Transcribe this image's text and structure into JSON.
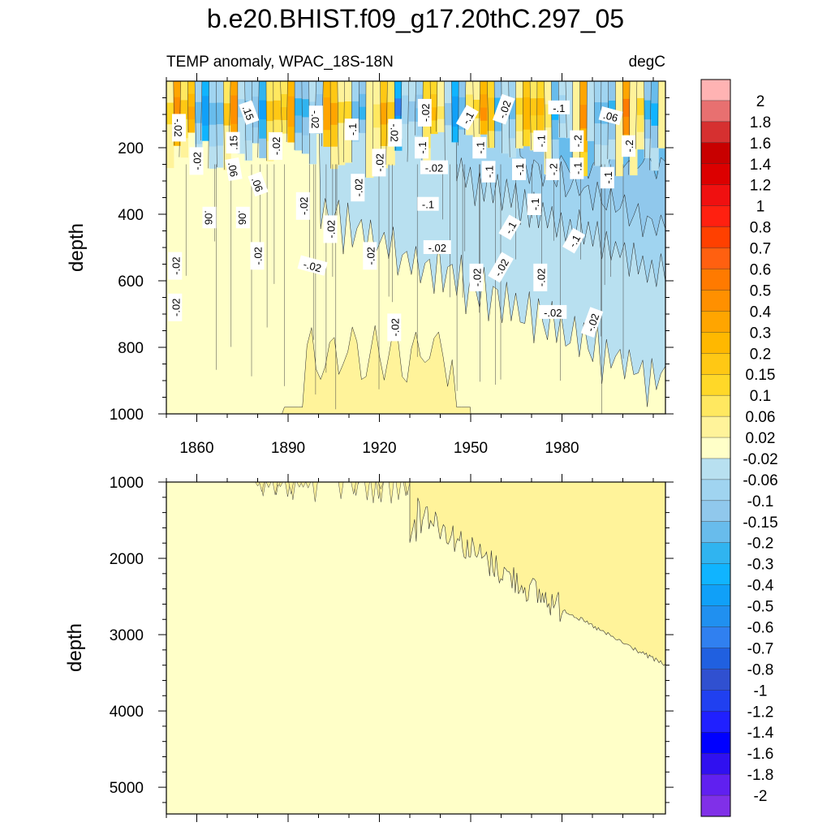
{
  "figure": {
    "title": "b.e20.BHIST.f09_g17.20thC.297_05"
  },
  "chart_data": [
    {
      "type": "heatmap",
      "panel": "upper",
      "left_subtitle": "TEMP anomaly, WPAC_18S-18N",
      "right_subtitle": "degC",
      "xlabel": "",
      "ylabel": "depth",
      "xlim": [
        1850,
        2014
      ],
      "ylim": [
        1000,
        0
      ],
      "x_ticks": [
        1860,
        1890,
        1920,
        1950,
        1980
      ],
      "x_tick_labels": [
        "1860",
        "1890",
        "1920",
        "1950",
        "1980"
      ],
      "y_ticks": [
        200,
        400,
        600,
        800,
        1000
      ],
      "y_tick_labels": [
        "200",
        "400",
        "600",
        "800",
        "1000"
      ],
      "description_regions": [
        {
          "depth": [
            0,
            260
          ],
          "x": [
            1850,
            2014
          ],
          "value_range": [
            -0.6,
            0.6
          ],
          "note": "high-frequency warm/cool alternation near surface"
        },
        {
          "depth": [
            260,
            700
          ],
          "x": [
            1940,
            2014
          ],
          "value_range": [
            -0.2,
            -0.02
          ]
        },
        {
          "depth": [
            400,
            1000
          ],
          "x": [
            1850,
            1940
          ],
          "value_range": [
            -0.02,
            0.06
          ]
        },
        {
          "depth": [
            700,
            1000
          ],
          "x": [
            1990,
            2014
          ],
          "value_range": [
            -0.06,
            -0.02
          ]
        }
      ],
      "contour_labels": [
        {
          "text": "-.02",
          "x": 1854,
          "y": 140,
          "rot": 90
        },
        {
          "text": ".15",
          "x": 1877,
          "y": 95,
          "rot": 70
        },
        {
          "text": "-.02",
          "x": 1899,
          "y": 115,
          "rot": 90
        },
        {
          "text": ".15",
          "x": 1872,
          "y": 185,
          "rot": -90
        },
        {
          "text": "-.02",
          "x": 1886,
          "y": 195,
          "rot": -90
        },
        {
          "text": "-.1",
          "x": 1911,
          "y": 145,
          "rot": -90
        },
        {
          "text": "-.02",
          "x": 1925,
          "y": 155,
          "rot": 90
        },
        {
          "text": "-.02",
          "x": 1935,
          "y": 95,
          "rot": -90
        },
        {
          "text": "-.1",
          "x": 1949,
          "y": 110,
          "rot": -60
        },
        {
          "text": "-.02",
          "x": 1961,
          "y": 85,
          "rot": -70
        },
        {
          "text": "-.1",
          "x": 1979,
          "y": 80,
          "rot": 0
        },
        {
          "text": ".06",
          "x": 1996,
          "y": 105,
          "rot": 15
        },
        {
          "text": "-.02",
          "x": 1860,
          "y": 240,
          "rot": -90
        },
        {
          "text": ".06",
          "x": 1872,
          "y": 265,
          "rot": 80
        },
        {
          "text": "-.02",
          "x": 1920,
          "y": 245,
          "rot": -90
        },
        {
          "text": "-.1",
          "x": 1934,
          "y": 200,
          "rot": -90
        },
        {
          "text": "-.02",
          "x": 1938,
          "y": 260,
          "rot": 0
        },
        {
          "text": "-.1",
          "x": 1953,
          "y": 200,
          "rot": -90
        },
        {
          "text": "-.1",
          "x": 1956,
          "y": 272,
          "rot": -90
        },
        {
          "text": "-.1",
          "x": 1966,
          "y": 265,
          "rot": -90
        },
        {
          "text": "-.1",
          "x": 1973,
          "y": 180,
          "rot": -90
        },
        {
          "text": "-.2",
          "x": 1977,
          "y": 265,
          "rot": -90
        },
        {
          "text": "-.1",
          "x": 1985,
          "y": 262,
          "rot": -90
        },
        {
          "text": "-.2",
          "x": 1985,
          "y": 180,
          "rot": -90
        },
        {
          "text": "-.2",
          "x": 2002,
          "y": 195,
          "rot": -90
        },
        {
          "text": "-.1",
          "x": 1995,
          "y": 290,
          "rot": -90
        },
        {
          "text": ".06",
          "x": 1880,
          "y": 310,
          "rot": 70
        },
        {
          "text": "-.02",
          "x": 1913,
          "y": 320,
          "rot": -90
        },
        {
          "text": ".06",
          "x": 1864,
          "y": 410,
          "rot": 90
        },
        {
          "text": ".06",
          "x": 1875,
          "y": 410,
          "rot": 90
        },
        {
          "text": "-.02",
          "x": 1895,
          "y": 375,
          "rot": -90
        },
        {
          "text": "-.02",
          "x": 1904,
          "y": 445,
          "rot": -90
        },
        {
          "text": "-.1",
          "x": 1936,
          "y": 370,
          "rot": 0
        },
        {
          "text": "-.1",
          "x": 1971,
          "y": 370,
          "rot": -90
        },
        {
          "text": "-.1",
          "x": 1963,
          "y": 440,
          "rot": -60
        },
        {
          "text": "-.02",
          "x": 1880,
          "y": 525,
          "rot": -90
        },
        {
          "text": "-.02",
          "x": 1917,
          "y": 525,
          "rot": -90
        },
        {
          "text": "-.02",
          "x": 1939,
          "y": 500,
          "rot": 0
        },
        {
          "text": "-.1",
          "x": 1984,
          "y": 480,
          "rot": -60
        },
        {
          "text": "-.02",
          "x": 1853,
          "y": 555,
          "rot": -90
        },
        {
          "text": "-.02",
          "x": 1898,
          "y": 555,
          "rot": 15
        },
        {
          "text": "-.02",
          "x": 1952,
          "y": 590,
          "rot": -90
        },
        {
          "text": "-.02",
          "x": 1960,
          "y": 560,
          "rot": -60
        },
        {
          "text": "-.02",
          "x": 1973,
          "y": 590,
          "rot": -90
        },
        {
          "text": "-.02",
          "x": 1853,
          "y": 680,
          "rot": -90
        },
        {
          "text": "-.02",
          "x": 1977,
          "y": 695,
          "rot": 0
        },
        {
          "text": "-.02",
          "x": 1990,
          "y": 725,
          "rot": -70
        },
        {
          "text": "-.02",
          "x": 1925,
          "y": 740,
          "rot": -90
        }
      ]
    },
    {
      "type": "heatmap",
      "panel": "lower",
      "xlabel": "",
      "ylabel": "depth",
      "xlim": [
        1850,
        2014
      ],
      "ylim": [
        5350,
        1000
      ],
      "x_ticks": [
        1860,
        1890,
        1920,
        1950,
        1980
      ],
      "y_ticks": [
        1000,
        2000,
        3000,
        4000,
        5000
      ],
      "y_tick_labels": [
        "1000",
        "2000",
        "3000",
        "4000",
        "5000"
      ],
      "description_regions": [
        {
          "depth": [
            1000,
            5350
          ],
          "x": [
            1850,
            2014
          ],
          "value_range": [
            -0.02,
            0.02
          ]
        },
        {
          "depth": [
            1000,
            3400
          ],
          "x": [
            1935,
            2014
          ],
          "value_range": [
            0.02,
            0.06
          ],
          "note": "warming penetrating deeper over time"
        }
      ]
    }
  ],
  "colorbar": {
    "labels": [
      "2",
      "1.8",
      "1.6",
      "1.4",
      "1.2",
      "1",
      "0.8",
      "0.7",
      "0.6",
      "0.5",
      "0.4",
      "0.3",
      "0.2",
      "0.15",
      "0.1",
      "0.06",
      "0.02",
      "-0.02",
      "-0.06",
      "-0.1",
      "-0.15",
      "-0.2",
      "-0.3",
      "-0.4",
      "-0.5",
      "-0.6",
      "-0.7",
      "-0.8",
      "-1",
      "-1.2",
      "-1.4",
      "-1.6",
      "-1.8",
      "-2"
    ],
    "colors": [
      "#FFB3B3",
      "#E87070",
      "#D63030",
      "#C80000",
      "#DC0000",
      "#F01010",
      "#FF2010",
      "#FF4000",
      "#FF6010",
      "#FF7A00",
      "#FF9000",
      "#FFA500",
      "#FFB800",
      "#FFC814",
      "#FFD828",
      "#FFE860",
      "#FFF39A",
      "#FFFFC8",
      "#B8E0F0",
      "#A0D4F0",
      "#90C8EC",
      "#68BCEC",
      "#30B4F0",
      "#10B4FF",
      "#10A0F8",
      "#2090F0",
      "#3080F0",
      "#2060E0",
      "#3050D0",
      "#2040F0",
      "#2020FF",
      "#0000FF",
      "#3010F0",
      "#6020F0",
      "#8030E8"
    ]
  },
  "palette": {
    "zero_band": "#FFFFC8",
    "warm_weak": "#FFF39A",
    "warm_mid": "#FFE860",
    "cool_weak": "#B8E0F0",
    "cool_mid": "#68BCEC"
  }
}
